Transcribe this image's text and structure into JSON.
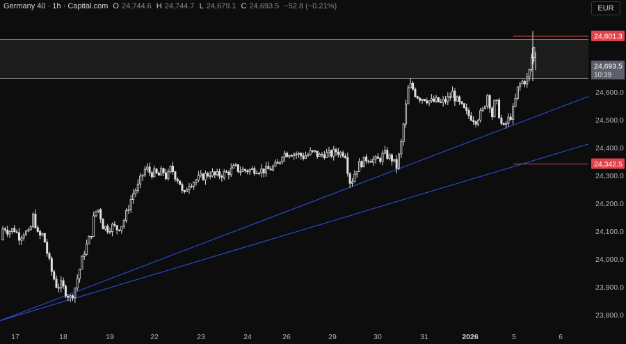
{
  "header": {
    "symbol": "Germany 40 · 1h · Capital.com",
    "open_label": "O",
    "open": "24,744.6",
    "high_label": "H",
    "high": "24,744.7",
    "low_label": "L",
    "low": "24,679.1",
    "close_label": "C",
    "close": "24,693.5",
    "change": "−52.8 (−0.21%)"
  },
  "currency_button": "EUR",
  "colors": {
    "background": "#0d0d0d",
    "candle": "#e0e0e0",
    "trendline": "#2c4fd6",
    "level": "#e0434c",
    "zone_border": "#8c8c8c",
    "price_tag": "#5d606b"
  },
  "chart_data": {
    "type": "candlestick",
    "ylim": [
      23750,
      24850
    ],
    "yticks": [
      24600,
      24500,
      24400,
      24300,
      24200,
      24100,
      24000,
      23900,
      23800
    ],
    "ytick_labels": [
      "24,600.0",
      "24,500.0",
      "24,400.0",
      "24,300.0",
      "24,200.0",
      "24,100.0",
      "24,000.0",
      "23,900.0",
      "23,800.0"
    ],
    "xtick_labels": [
      "17",
      "18",
      "19",
      "22",
      "23",
      "24",
      "26",
      "29",
      "30",
      "31",
      "2026",
      "5",
      "6"
    ],
    "resistance_zone": [
      24650,
      24790
    ],
    "levels": [
      {
        "value": 24801.3,
        "label": "24,801.3"
      },
      {
        "value": 24342.5,
        "label": "24,342.5"
      }
    ],
    "current_price": {
      "value": 24693.5,
      "label": "24,693.5",
      "countdown": "10:39"
    },
    "trendlines": [
      {
        "x_start": "17",
        "start": 23780,
        "x_end": "6+",
        "end": 24585
      },
      {
        "x_start": "17",
        "start": 23780,
        "x_end": "6+",
        "end": 24414
      }
    ],
    "path": [
      [
        0,
        24070
      ],
      [
        5,
        24120
      ],
      [
        12,
        24100
      ],
      [
        20,
        24110
      ],
      [
        28,
        24080
      ],
      [
        35,
        24100
      ],
      [
        42,
        24090
      ],
      [
        48,
        24160
      ],
      [
        55,
        24080
      ],
      [
        62,
        24090
      ],
      [
        68,
        24020
      ],
      [
        75,
        23950
      ],
      [
        82,
        23900
      ],
      [
        88,
        23910
      ],
      [
        95,
        23880
      ],
      [
        102,
        23860
      ],
      [
        108,
        23900
      ],
      [
        114,
        23960
      ],
      [
        120,
        24020
      ],
      [
        126,
        24060
      ],
      [
        132,
        24100
      ],
      [
        136,
        24170
      ],
      [
        142,
        24180
      ],
      [
        148,
        24120
      ],
      [
        155,
        24110
      ],
      [
        162,
        24120
      ],
      [
        168,
        24110
      ],
      [
        174,
        24120
      ],
      [
        180,
        24150
      ],
      [
        186,
        24200
      ],
      [
        192,
        24240
      ],
      [
        198,
        24260
      ],
      [
        204,
        24300
      ],
      [
        210,
        24330
      ],
      [
        216,
        24310
      ],
      [
        222,
        24310
      ],
      [
        228,
        24300
      ],
      [
        234,
        24320
      ],
      [
        240,
        24290
      ],
      [
        246,
        24330
      ],
      [
        252,
        24300
      ],
      [
        258,
        24280
      ],
      [
        264,
        24220
      ],
      [
        270,
        24270
      ],
      [
        278,
        24280
      ],
      [
        286,
        24290
      ],
      [
        294,
        24300
      ],
      [
        302,
        24310
      ],
      [
        310,
        24300
      ],
      [
        318,
        24305
      ],
      [
        326,
        24310
      ],
      [
        332,
        24320
      ],
      [
        338,
        24330
      ],
      [
        344,
        24320
      ],
      [
        352,
        24320
      ],
      [
        360,
        24320
      ],
      [
        368,
        24325
      ],
      [
        376,
        24320
      ],
      [
        384,
        24320
      ],
      [
        392,
        24330
      ],
      [
        400,
        24340
      ],
      [
        406,
        24380
      ],
      [
        412,
        24380
      ],
      [
        418,
        24385
      ],
      [
        424,
        24380
      ],
      [
        430,
        24375
      ],
      [
        436,
        24370
      ],
      [
        442,
        24375
      ],
      [
        448,
        24385
      ],
      [
        454,
        24380
      ],
      [
        460,
        24370
      ],
      [
        466,
        24380
      ],
      [
        472,
        24375
      ],
      [
        478,
        24380
      ],
      [
        484,
        24390
      ],
      [
        490,
        24380
      ],
      [
        496,
        24385
      ],
      [
        500,
        24320
      ],
      [
        504,
        24270
      ],
      [
        510,
        24310
      ],
      [
        516,
        24340
      ],
      [
        522,
        24350
      ],
      [
        528,
        24365
      ],
      [
        534,
        24360
      ],
      [
        540,
        24355
      ],
      [
        546,
        24360
      ],
      [
        552,
        24380
      ],
      [
        558,
        24370
      ],
      [
        564,
        24360
      ],
      [
        570,
        24330
      ],
      [
        576,
        24400
      ],
      [
        580,
        24480
      ],
      [
        584,
        24560
      ],
      [
        588,
        24630
      ],
      [
        592,
        24620
      ],
      [
        598,
        24590
      ],
      [
        604,
        24580
      ],
      [
        610,
        24580
      ],
      [
        616,
        24570
      ],
      [
        622,
        24565
      ],
      [
        628,
        24570
      ],
      [
        634,
        24560
      ],
      [
        640,
        24570
      ],
      [
        646,
        24580
      ],
      [
        650,
        24600
      ],
      [
        654,
        24580
      ],
      [
        660,
        24560
      ],
      [
        666,
        24540
      ],
      [
        672,
        24520
      ],
      [
        678,
        24510
      ],
      [
        684,
        24500
      ],
      [
        690,
        24520
      ],
      [
        696,
        24540
      ],
      [
        700,
        24600
      ],
      [
        704,
        24560
      ],
      [
        708,
        24510
      ],
      [
        712,
        24580
      ],
      [
        716,
        24540
      ],
      [
        720,
        24490
      ],
      [
        724,
        24470
      ],
      [
        730,
        24500
      ],
      [
        736,
        24520
      ],
      [
        740,
        24560
      ],
      [
        744,
        24610
      ],
      [
        748,
        24630
      ],
      [
        752,
        24640
      ],
      [
        756,
        24640
      ],
      [
        760,
        24660
      ],
      [
        764,
        24720
      ],
      [
        768,
        24760
      ],
      [
        772,
        24693
      ]
    ]
  }
}
